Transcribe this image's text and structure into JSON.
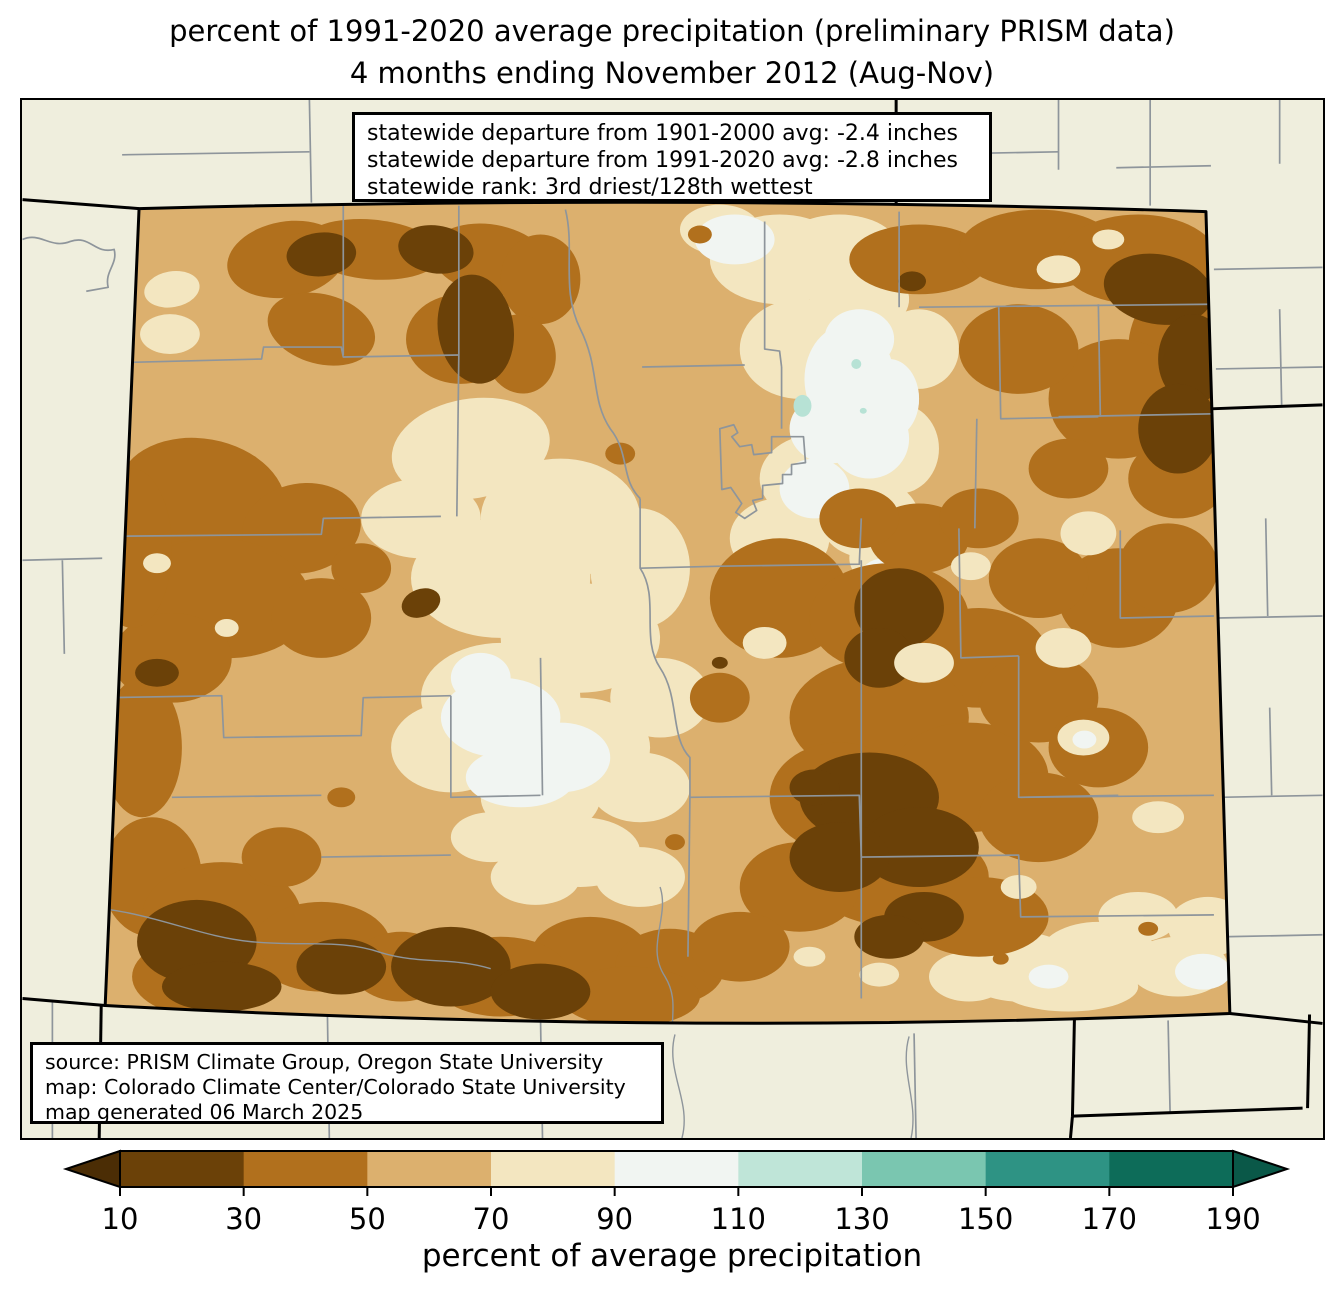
{
  "title": {
    "line1": "percent of 1991-2020 average precipitation (preliminary PRISM data)",
    "line2": "4 months ending November 2012 (Aug-Nov)"
  },
  "stats_box": {
    "lines": [
      "statewide departure from 1901-2000 avg: -2.4 inches",
      "statewide departure from 1991-2020 avg: -2.8 inches",
      "statewide rank: 3rd driest/128th wettest"
    ]
  },
  "source_box": {
    "lines": [
      "source: PRISM Climate Group, Oregon State University",
      "map: Colorado Climate Center/Colorado State University",
      "map generated 06 March 2025"
    ]
  },
  "colorbar": {
    "title": "percent of average precipitation",
    "tick_labels": [
      "10",
      "30",
      "50",
      "70",
      "90",
      "110",
      "130",
      "150",
      "170",
      "190"
    ],
    "segment_colors": [
      "#6b4108",
      "#b1701d",
      "#dcb06e",
      "#f3e6c0",
      "#f1f5f2",
      "#bfe5d8",
      "#7ac6b0",
      "#2e9384",
      "#0d6c59"
    ],
    "under_arrow_color": "#4b2d05",
    "over_arrow_color": "#0a5848",
    "units": "percent"
  },
  "map": {
    "region": "Colorado",
    "palette": {
      "p10_30": "#6b4108",
      "p30_50": "#b1701d",
      "p50_70": "#dcb06e",
      "p70_90": "#f3e6c0",
      "p90_110": "#f1f5f2",
      "p110_130": "#b7e2d5",
      "neighbor_fill": "#efeedd",
      "county_line": "#8e959b",
      "state_border": "#000000"
    }
  }
}
